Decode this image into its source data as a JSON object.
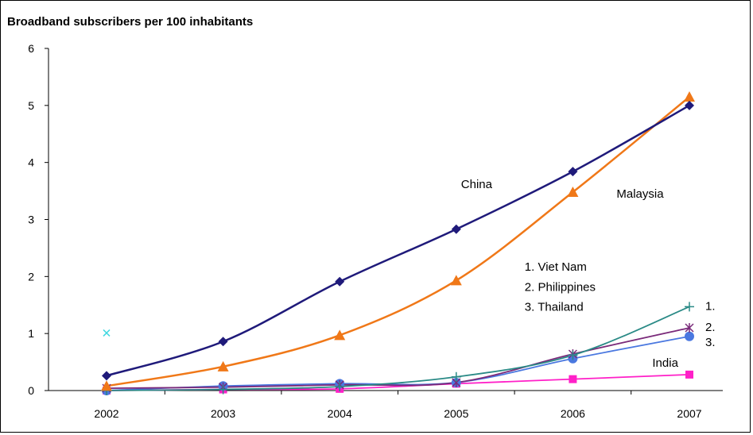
{
  "chart_data": {
    "type": "line",
    "title": "Broadband subscribers per 100 inhabitants",
    "xlabel": "",
    "ylabel": "",
    "x": [
      "2002",
      "2003",
      "2004",
      "2005",
      "2006",
      "2007"
    ],
    "ylim": [
      0,
      6
    ],
    "yticks": [
      "0",
      "1",
      "2",
      "3",
      "4",
      "5",
      "6"
    ],
    "grid": false,
    "legend": "none",
    "series": [
      {
        "name": "China",
        "color": "#1f1a7a",
        "marker": "diamond",
        "values": [
          0.26,
          0.86,
          1.91,
          2.83,
          3.84,
          5.0
        ]
      },
      {
        "name": "Malaysia",
        "color": "#f07818",
        "marker": "triangle",
        "values": [
          0.08,
          0.42,
          0.97,
          1.93,
          3.48,
          5.15
        ]
      },
      {
        "name": "1.",
        "color": "#2a8a86",
        "marker": "plus",
        "values": [
          0.0,
          0.02,
          0.07,
          0.24,
          0.62,
          1.47
        ]
      },
      {
        "name": "2.",
        "color": "#7a2a7a",
        "marker": "star",
        "values": [
          0.04,
          0.06,
          0.1,
          0.14,
          0.64,
          1.1
        ]
      },
      {
        "name": "3.",
        "color": "#4a78e0",
        "marker": "circle",
        "values": [
          0.0,
          0.08,
          0.12,
          0.14,
          0.56,
          0.95
        ]
      },
      {
        "name": "India",
        "color": "#ff20c8",
        "marker": "square",
        "values": [
          0.0,
          0.02,
          0.03,
          0.12,
          0.2,
          0.28
        ]
      }
    ],
    "annotations": [
      {
        "text": "China",
        "x": "2005",
        "y": 3.55
      },
      {
        "text": "Malaysia",
        "x": "2006",
        "y": 3.38
      },
      {
        "text": "1. Viet Nam",
        "x": "2005",
        "y": 2.1
      },
      {
        "text": "2. Philippines",
        "x": "2005",
        "y": 1.75
      },
      {
        "text": "3. Thailand",
        "x": "2005",
        "y": 1.4
      },
      {
        "text": "India",
        "x": "2006",
        "y": 0.42
      }
    ],
    "stray_marker": {
      "x": "2002",
      "y": 1.01,
      "color": "#40d8e0"
    }
  }
}
